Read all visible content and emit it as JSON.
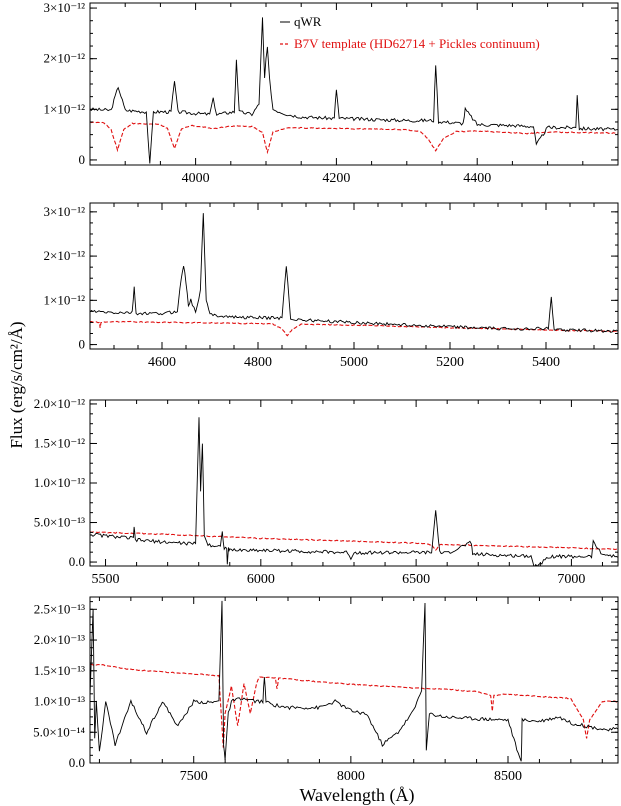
{
  "figure": {
    "ylabel": "Flux (erg/s/cm²/Å)",
    "xlabel": "Wavelength (Å)",
    "colors": {
      "qwr": "#000000",
      "template": "#e01010",
      "axis": "#000000"
    }
  },
  "legend": [
    {
      "label": "qWR",
      "color": "#000000",
      "dash": "solid"
    },
    {
      "label": "B7V template (HD62714 + Pickles continuum)",
      "color": "#e01010",
      "dash": "dashed"
    }
  ],
  "chart_data": [
    {
      "type": "line",
      "panel": 1,
      "xlim": [
        3850,
        4600
      ],
      "ylim": [
        -1e-13,
        3.1e-12
      ],
      "xticks": [
        4000,
        4200,
        4400
      ],
      "yticks": [
        {
          "v": 0,
          "label": "0"
        },
        {
          "v": 1e-12,
          "label": "1×10⁻¹²"
        },
        {
          "v": 2e-12,
          "label": "2×10⁻¹²"
        },
        {
          "v": 3e-12,
          "label": "3×10⁻¹²"
        }
      ],
      "series": [
        {
          "name": "qWR",
          "x": [
            3850,
            3880,
            3890,
            3900,
            3930,
            3935,
            3940,
            3965,
            3970,
            3975,
            4000,
            4020,
            4025,
            4030,
            4055,
            4058,
            4062,
            4080,
            4090,
            4095,
            4098,
            4100,
            4102,
            4105,
            4110,
            4130,
            4150,
            4197,
            4200,
            4204,
            4250,
            4300,
            4338,
            4341,
            4345,
            4380,
            4383,
            4400,
            4450,
            4480,
            4484,
            4500,
            4540,
            4542,
            4545,
            4600
          ],
          "values": [
            1e-12,
            9.8e-13,
            1.45e-12,
            9.8e-13,
            9.5e-13,
            -1e-13,
            9.5e-13,
            9.5e-13,
            1.55e-12,
            9.5e-13,
            9.2e-13,
            9e-13,
            1.2e-12,
            9e-13,
            9.5e-13,
            2e-12,
            9.5e-13,
            9e-13,
            1.1e-12,
            2.8e-12,
            1.6e-12,
            2e-12,
            2.2e-12,
            1.6e-12,
            1e-12,
            9e-13,
            8.5e-13,
            8.2e-13,
            1.4e-12,
            8.2e-13,
            8e-13,
            7.8e-13,
            7.8e-13,
            1.9e-12,
            7.6e-13,
            7.2e-13,
            1e-12,
            7e-13,
            6.8e-13,
            6.6e-13,
            3e-13,
            6.4e-13,
            6.4e-13,
            1.3e-12,
            6.2e-13,
            6e-13
          ]
        },
        {
          "name": "B7V template (HD62714 + Pickles continuum)",
          "x": [
            3850,
            3870,
            3880,
            3889,
            3898,
            3910,
            3950,
            3960,
            3970,
            3980,
            3995,
            4026,
            4050,
            4080,
            4095,
            4102,
            4110,
            4130,
            4200,
            4300,
            4320,
            4330,
            4341,
            4352,
            4370,
            4400,
            4471,
            4500,
            4550,
            4600
          ],
          "values": [
            7.5e-13,
            7.3e-13,
            6e-13,
            2e-13,
            6e-13,
            7.2e-13,
            7e-13,
            6.2e-13,
            2.2e-13,
            6.2e-13,
            6.8e-13,
            6.2e-13,
            6.7e-13,
            6.6e-13,
            5.5e-13,
            1.5e-13,
            5.5e-13,
            6.4e-13,
            6.2e-13,
            6e-13,
            5.5e-13,
            4.2e-13,
            1.8e-13,
            4.2e-13,
            5.6e-13,
            5.7e-13,
            5.2e-13,
            5.5e-13,
            5.4e-13,
            5.3e-13
          ]
        }
      ]
    },
    {
      "type": "line",
      "panel": 2,
      "xlim": [
        4450,
        5550
      ],
      "ylim": [
        -1e-13,
        3.2e-12
      ],
      "xticks": [
        4600,
        4800,
        5000,
        5200,
        5400
      ],
      "yticks": [
        {
          "v": 0,
          "label": "0"
        },
        {
          "v": 1e-12,
          "label": "1×10⁻¹²"
        },
        {
          "v": 2e-12,
          "label": "2×10⁻¹²"
        },
        {
          "v": 3e-12,
          "label": "3×10⁻¹²"
        }
      ],
      "series": [
        {
          "name": "qWR",
          "x": [
            4450,
            4500,
            4538,
            4542,
            4546,
            4600,
            4632,
            4640,
            4645,
            4650,
            4655,
            4660,
            4670,
            4680,
            4686,
            4692,
            4700,
            4750,
            4850,
            4859,
            4868,
            4900,
            5000,
            5100,
            5200,
            5300,
            5405,
            5411,
            5417,
            5450,
            5550
          ],
          "values": [
            7.5e-13,
            7.2e-13,
            7.2e-13,
            1.3e-12,
            7e-13,
            7e-13,
            7.5e-13,
            1.5e-12,
            1.8e-12,
            1.4e-12,
            9e-13,
            1e-12,
            7.5e-13,
            1.2e-12,
            3e-12,
            1e-12,
            6.8e-13,
            6.2e-13,
            6e-13,
            1.8e-12,
            5.8e-13,
            5.5e-13,
            5e-13,
            4.5e-13,
            4e-13,
            3.6e-13,
            3.6e-13,
            1.05e-12,
            3.4e-13,
            3.3e-13,
            3e-13
          ]
        },
        {
          "name": "B7V template (HD62714 + Pickles continuum)",
          "x": [
            4450,
            4470,
            4471,
            4473,
            4500,
            4700,
            4830,
            4850,
            4861,
            4872,
            4890,
            5000,
            5200,
            5400,
            5550
          ],
          "values": [
            5.2e-13,
            5e-13,
            3.8e-13,
            5e-13,
            5.2e-13,
            4.9e-13,
            4.7e-13,
            3.5e-13,
            2e-13,
            3.5e-13,
            4.6e-13,
            4.4e-13,
            3.8e-13,
            3.3e-13,
            3e-13
          ]
        }
      ]
    },
    {
      "type": "line",
      "panel": 3,
      "xlim": [
        5450,
        7150
      ],
      "ylim": [
        -5e-14,
        2.05e-12
      ],
      "xticks": [
        5500,
        6000,
        6500,
        7000
      ],
      "yticks": [
        {
          "v": 0,
          "label": "0.0"
        },
        {
          "v": 5e-13,
          "label": "5.0×10⁻¹³"
        },
        {
          "v": 1e-12,
          "label": "1.0×10⁻¹²"
        },
        {
          "v": 1.5e-12,
          "label": "1.5×10⁻¹²"
        },
        {
          "v": 2e-12,
          "label": "2.0×10⁻¹²"
        }
      ],
      "series": [
        {
          "name": "qWR",
          "x": [
            5450,
            5590,
            5592,
            5596,
            5700,
            5790,
            5801,
            5806,
            5812,
            5818,
            5830,
            5870,
            5876,
            5882,
            5890,
            5892,
            5896,
            5900,
            6000,
            6280,
            6290,
            6300,
            6400,
            6550,
            6563,
            6576,
            6600,
            6678,
            6682,
            6800,
            6870,
            6880,
            6900,
            6920,
            7000,
            7065,
            7070,
            7100,
            7150
          ],
          "values": [
            3.5e-13,
            3e-13,
            4.5e-13,
            2.8e-13,
            2.5e-13,
            2.3e-13,
            1.85e-12,
            9e-13,
            1.5e-12,
            3.5e-13,
            2.2e-13,
            2e-13,
            3.8e-13,
            1.8e-13,
            1.8e-13,
            -5e-14,
            1.8e-13,
            1.5e-13,
            1.5e-13,
            1.2e-13,
            5e-14,
            1.2e-13,
            1.2e-13,
            1.2e-13,
            6.5e-13,
            1.2e-13,
            1.1e-13,
            2.5e-13,
            1e-13,
            8e-14,
            8e-14,
            -5e-14,
            -3e-14,
            7e-14,
            7e-14,
            7e-14,
            2.5e-13,
            1e-13,
            6e-14
          ]
        },
        {
          "name": "B7V template (HD62714 + Pickles continuum)",
          "x": [
            5450,
            5700,
            6000,
            6500,
            6550,
            6563,
            6576,
            6600,
            6800,
            7000,
            7150
          ],
          "values": [
            3.8e-13,
            3.5e-13,
            3e-13,
            2.4e-13,
            2.2e-13,
            1.5e-13,
            2.2e-13,
            2.2e-13,
            2e-13,
            1.8e-13,
            1.6e-13
          ]
        }
      ]
    },
    {
      "type": "line",
      "panel": 4,
      "xlim": [
        7170,
        8850
      ],
      "ylim": [
        0,
        2.7e-13
      ],
      "xticks": [
        7500,
        8000,
        8500
      ],
      "yticks": [
        {
          "v": 0,
          "label": "0.0"
        },
        {
          "v": 5e-14,
          "label": "5.0×10⁻¹⁴"
        },
        {
          "v": 1e-13,
          "label": "1.0×10⁻¹³"
        },
        {
          "v": 1.5e-13,
          "label": "1.5×10⁻¹³"
        },
        {
          "v": 2e-13,
          "label": "2.0×10⁻¹³"
        },
        {
          "v": 2.5e-13,
          "label": "2.5×10⁻¹³"
        }
      ],
      "series": [
        {
          "name": "qWR",
          "x": [
            7170,
            7180,
            7185,
            7190,
            7200,
            7220,
            7250,
            7300,
            7350,
            7400,
            7450,
            7500,
            7550,
            7580,
            7590,
            7595,
            7600,
            7610,
            7620,
            7650,
            7700,
            7720,
            7725,
            7730,
            7750,
            7800,
            7900,
            7950,
            8000,
            8050,
            8100,
            8150,
            8200,
            8225,
            8236,
            8240,
            8250,
            8300,
            8400,
            8500,
            8542,
            8545,
            8600,
            8662,
            8700,
            8750,
            8800,
            8850
          ],
          "values": [
            1.1e-13,
            2.5e-13,
            4e-14,
            1e-13,
            2e-14,
            1e-13,
            3e-14,
            1e-13,
            5e-14,
            1e-13,
            6e-14,
            1e-13,
            9.8e-14,
            1e-13,
            2.65e-13,
            3e-14,
            5e-15,
            8e-14,
            1e-13,
            1.05e-13,
            1e-13,
            1e-13,
            1.4e-13,
            1e-13,
            9.5e-14,
            9e-14,
            9e-14,
            1e-13,
            8.5e-14,
            8e-14,
            3e-14,
            5e-14,
            8.5e-14,
            1.2e-13,
            2.6e-13,
            2e-14,
            8e-14,
            7.5e-14,
            7.2e-14,
            7e-14,
            0.0,
            7e-14,
            6.8e-14,
            7.5e-14,
            6.5e-14,
            6e-14,
            5.5e-14,
            5.5e-14
          ]
        },
        {
          "name": "B7V template (HD62714 + Pickles continuum)",
          "x": [
            7170,
            7200,
            7300,
            7400,
            7500,
            7580,
            7594,
            7600,
            7620,
            7640,
            7660,
            7680,
            7700,
            7710,
            7760,
            7765,
            7770,
            7900,
            8000,
            8200,
            8300,
            8400,
            8445,
            8450,
            8455,
            8500,
            8600,
            8700,
            8740,
            8750,
            8760,
            8800,
            8850
          ],
          "values": [
            1.6e-13,
            1.6e-13,
            1.52e-13,
            1.48e-13,
            1.45e-13,
            1.42e-13,
            2.5e-14,
            8e-14,
            1.25e-13,
            6e-14,
            1.3e-13,
            8e-14,
            1.3e-13,
            1.4e-13,
            1.38e-13,
            1.2e-13,
            1.38e-13,
            1.32e-13,
            1.28e-13,
            1.22e-13,
            1.2e-13,
            1.16e-13,
            1.1e-13,
            8.5e-14,
            1.1e-13,
            1.12e-13,
            1.08e-13,
            1.05e-13,
            7e-14,
            4e-14,
            7e-14,
            1e-13,
            1e-13
          ]
        }
      ]
    }
  ]
}
